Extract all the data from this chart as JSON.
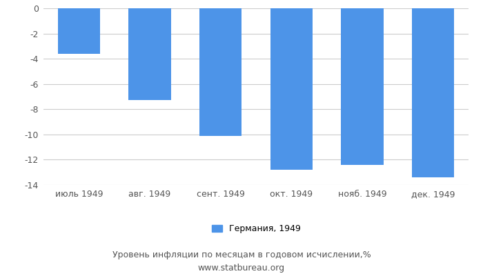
{
  "categories": [
    "июль 1949",
    "авг. 1949",
    "сент. 1949",
    "окт. 1949",
    "нояб. 1949",
    "дек. 1949"
  ],
  "values": [
    -3.6,
    -7.3,
    -10.1,
    -12.8,
    -12.4,
    -13.4
  ],
  "bar_color": "#4d94e8",
  "ylim": [
    -14,
    0
  ],
  "yticks": [
    0,
    -2,
    -4,
    -6,
    -8,
    -10,
    -12,
    -14
  ],
  "legend_label": "Германия, 1949",
  "subtitle": "Уровень инфляции по месяцам в годовом исчислении,%",
  "source": "www.statbureau.org",
  "background_color": "#ffffff",
  "grid_color": "#cccccc",
  "bar_width": 0.6,
  "tick_label_color": "#555555",
  "tick_fontsize": 9,
  "legend_fontsize": 9,
  "subtitle_fontsize": 9,
  "source_fontsize": 9
}
